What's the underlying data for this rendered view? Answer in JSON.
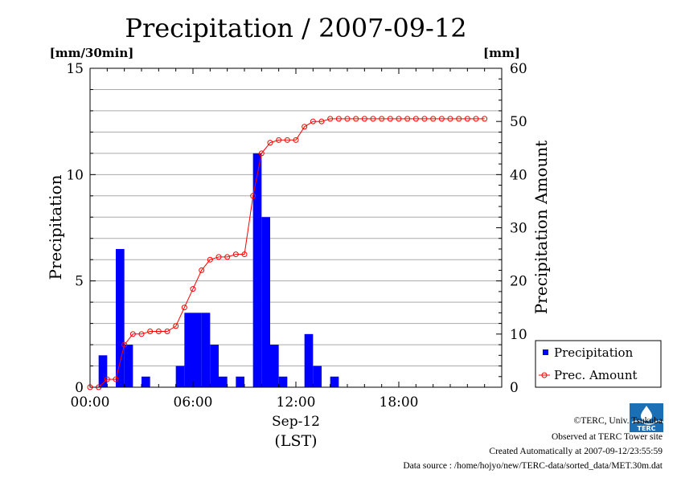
{
  "chart_data": {
    "type": "bar",
    "title": "Precipitation / 2007-09-12",
    "left_unit": "[mm/30min]",
    "right_unit": "[mm]",
    "ylabel": "Precipitation",
    "y2label": "Precipitation Amount",
    "xlabel_date": "Sep-12",
    "xlabel_tz": "(LST)",
    "ylim": [
      0,
      15
    ],
    "y2lim": [
      0,
      60
    ],
    "yticks": [
      "0",
      "5",
      "10",
      "15"
    ],
    "y2ticks": [
      "0",
      "10",
      "20",
      "30",
      "40",
      "50",
      "60"
    ],
    "xticks": [
      "00:00",
      "06:00",
      "12:00",
      "18:00"
    ],
    "grid": true,
    "legend_position": "bottom-right",
    "series": [
      {
        "name": "Precipitation",
        "kind": "bar",
        "color": "#0000ff",
        "unit_interval": "30min",
        "x": [
          "00:00",
          "00:30",
          "01:00",
          "01:30",
          "02:00",
          "02:30",
          "03:00",
          "03:30",
          "04:00",
          "04:30",
          "05:00",
          "05:30",
          "06:00",
          "06:30",
          "07:00",
          "07:30",
          "08:00",
          "08:30",
          "09:00",
          "09:30",
          "10:00",
          "10:30",
          "11:00",
          "11:30",
          "12:00",
          "12:30",
          "13:00",
          "13:30",
          "14:00"
        ],
        "values": [
          0,
          1.5,
          0,
          6.5,
          2,
          0,
          0.5,
          0,
          0,
          0,
          1,
          3.5,
          3.5,
          3.5,
          2,
          0.5,
          0,
          0.5,
          0,
          11,
          8,
          2,
          0.5,
          0,
          0,
          2.5,
          1,
          0,
          0.5
        ]
      },
      {
        "name": "Prec. Amount",
        "kind": "line",
        "color": "#ff0000",
        "x": [
          "00:00",
          "00:30",
          "01:00",
          "01:30",
          "02:00",
          "02:30",
          "03:00",
          "03:30",
          "04:00",
          "04:30",
          "05:00",
          "05:30",
          "06:00",
          "06:30",
          "07:00",
          "07:30",
          "08:00",
          "08:30",
          "09:00",
          "09:30",
          "10:00",
          "10:30",
          "11:00",
          "11:30",
          "12:00",
          "12:30",
          "13:00",
          "13:30",
          "14:00",
          "14:30",
          "15:00",
          "15:30",
          "16:00",
          "16:30",
          "17:00",
          "17:30",
          "18:00",
          "18:30",
          "19:00",
          "19:30",
          "20:00",
          "20:30",
          "21:00",
          "21:30",
          "22:00",
          "22:30",
          "23:00"
        ],
        "values": [
          0,
          0,
          1.5,
          1.5,
          8,
          10,
          10,
          10.5,
          10.5,
          10.5,
          11.5,
          15,
          18.5,
          22,
          24,
          24.5,
          24.5,
          25,
          25,
          36,
          44,
          46,
          46.5,
          46.5,
          46.5,
          49,
          50,
          50,
          50.5,
          50.5,
          50.5,
          50.5,
          50.5,
          50.5,
          50.5,
          50.5,
          50.5,
          50.5,
          50.5,
          50.5,
          50.5,
          50.5,
          50.5,
          50.5,
          50.5,
          50.5,
          50.5
        ]
      }
    ]
  },
  "logo_text": "TERC",
  "footer": {
    "copyright": "©TERC, Univ. Tsukuba",
    "observed": "Observed at TERC Tower site",
    "created": "Created Automatically at 2007-09-12/23:55:59",
    "source": "Data source : /home/hojyo/new/TERC-data/sorted_data/MET.30m.dat"
  }
}
